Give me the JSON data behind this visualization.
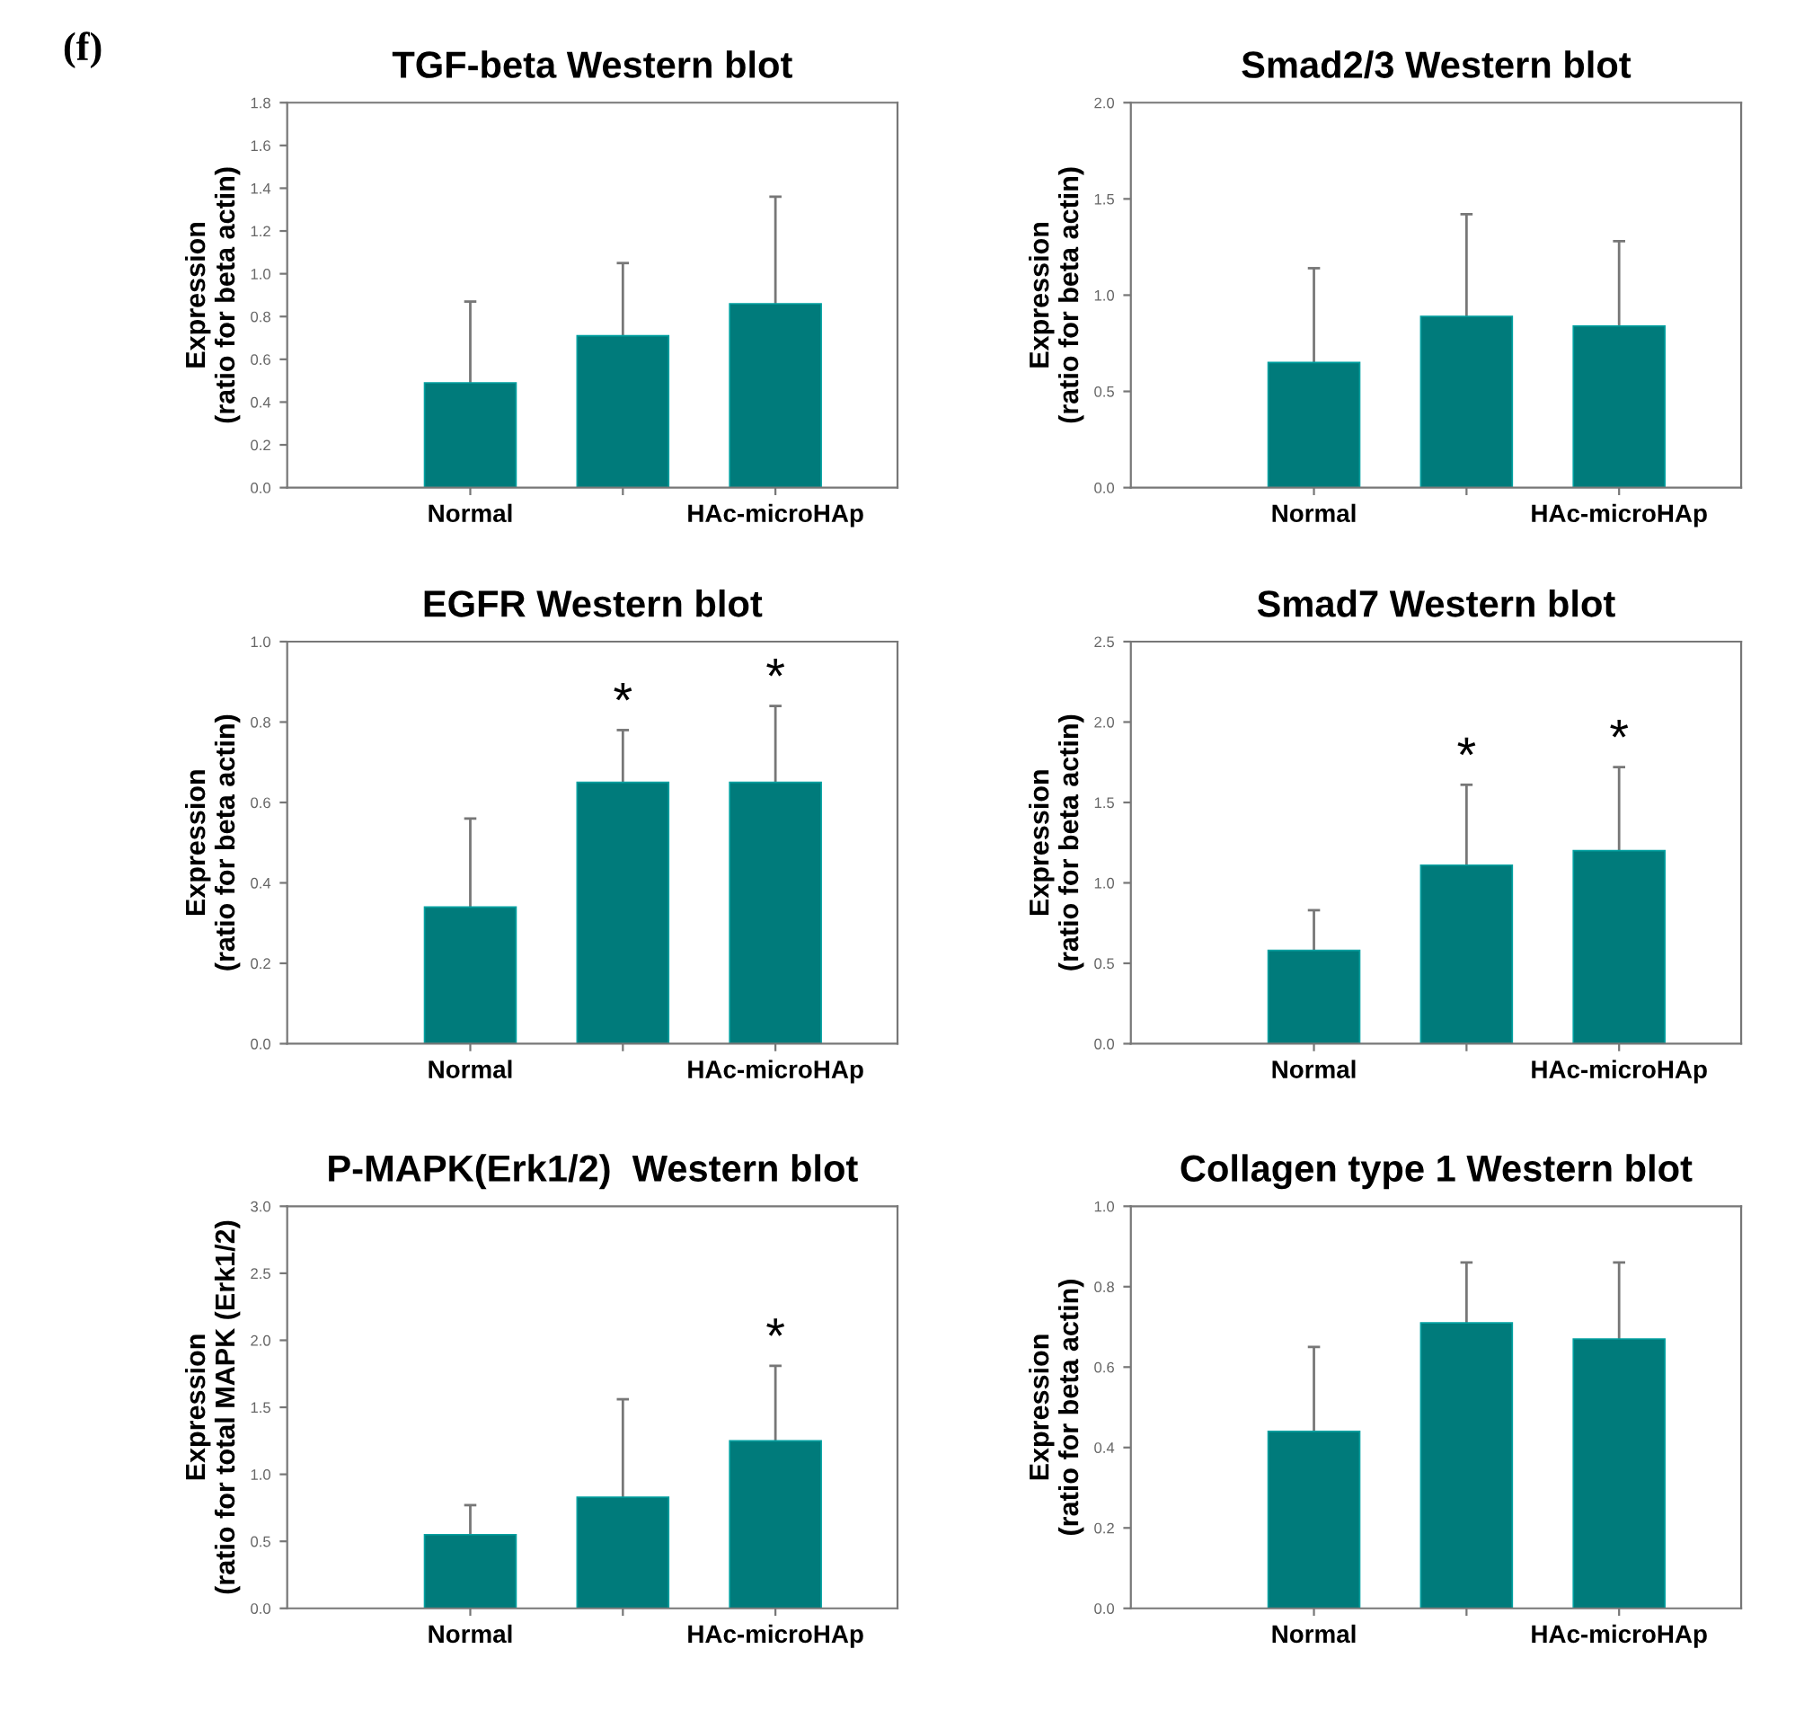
{
  "chart_data": [
    {
      "type": "bar",
      "title": "TGF-beta Western blot",
      "ylabel": "Expression\n(ratio for beta actin)",
      "annotations": [
        "(f)"
      ],
      "categories": [
        "Normal",
        null,
        "HAc-microHAp"
      ],
      "values": [
        0.49,
        0.71,
        0.86
      ],
      "errors": [
        [
          0.49,
          0.87
        ],
        [
          0.71,
          1.05
        ],
        [
          0.86,
          1.36
        ]
      ],
      "color": "#007b7b",
      "ylim": [
        0,
        1.8
      ],
      "yticks": [
        {
          "value": 0,
          "label": "0.0"
        },
        0.2,
        0.4,
        0.6,
        0.8,
        {
          "value": 1,
          "label": "1.0"
        },
        1.2,
        1.4,
        1.6,
        1.8
      ],
      "grid": false,
      "legend": false
    },
    {
      "type": "bar",
      "title": "Smad2/3 Western blot",
      "ylabel": "Expression\n(ratio for beta actin)",
      "categories": [
        "Normal",
        null,
        "HAc-microHAp"
      ],
      "values": [
        0.65,
        0.89,
        0.84
      ],
      "errors": [
        [
          0.65,
          1.14
        ],
        [
          0.89,
          1.42
        ],
        [
          0.84,
          1.28
        ]
      ],
      "color": "#007b7b",
      "ylim": [
        0,
        2
      ],
      "yticks": [
        {
          "value": 0,
          "label": "0.0"
        },
        0.5,
        {
          "value": 1,
          "label": "1.0"
        },
        1.5,
        {
          "value": 2,
          "label": "2.0"
        }
      ],
      "grid": false,
      "legend": false
    },
    {
      "type": "bar",
      "title": "EGFR Western blot",
      "ylabel": "Expression\n(ratio for beta actin)",
      "annotations": [
        {
          "text": "*",
          "y": 0.78
        },
        {
          "text": "*",
          "x": "HAc-microHAp",
          "y": 0.84
        }
      ],
      "categories": [
        "Normal",
        null,
        "HAc-microHAp"
      ],
      "values": [
        0.34,
        0.65,
        0.65
      ],
      "errors": [
        [
          0.34,
          0.56
        ],
        [
          0.65,
          0.78
        ],
        [
          0.65,
          0.84
        ]
      ],
      "color": "#007b7b",
      "ylim": [
        0,
        1
      ],
      "yticks": [
        {
          "value": 0,
          "label": "0.0"
        },
        0.2,
        0.4,
        0.6,
        0.8,
        {
          "value": 1,
          "label": "1.0"
        }
      ],
      "grid": false,
      "legend": false
    },
    {
      "type": "bar",
      "title": "Smad7 Western blot",
      "ylabel": "Expression\n(ratio for beta actin)",
      "annotations": [
        {
          "text": "*",
          "y": 1.61
        },
        {
          "text": "*",
          "x": "HAc-microHAp",
          "y": 1.72
        }
      ],
      "categories": [
        "Normal",
        null,
        "HAc-microHAp"
      ],
      "values": [
        0.58,
        1.11,
        1.2
      ],
      "errors": [
        [
          0.58,
          0.83
        ],
        [
          1.11,
          1.61
        ],
        [
          1.2,
          1.72
        ]
      ],
      "color": "#007b7b",
      "ylim": [
        0,
        2.5
      ],
      "yticks": [
        {
          "value": 0,
          "label": "0.0"
        },
        0.5,
        {
          "value": 1,
          "label": "1.0"
        },
        1.5,
        {
          "value": 2,
          "label": "2.0"
        },
        2.5
      ],
      "grid": false,
      "legend": false
    },
    {
      "type": "bar",
      "title": "P-MAPK(Erk1/2)  Western blot",
      "ylabel": "Expression\n(ratio for total MAPK (Erk1/2)",
      "annotations": [
        {
          "text": "*",
          "x": "HAc-microHAp",
          "y": 1.81
        }
      ],
      "categories": [
        "Normal",
        null,
        "HAc-microHAp"
      ],
      "values": [
        0.55,
        0.83,
        1.25
      ],
      "errors": [
        [
          0.55,
          0.77
        ],
        [
          0.83,
          1.56
        ],
        [
          1.25,
          1.81
        ]
      ],
      "color": "#007b7b",
      "ylim": [
        0,
        3
      ],
      "yticks": [
        {
          "value": 0,
          "label": "0.0"
        },
        0.5,
        {
          "value": 1,
          "label": "1.0"
        },
        1.5,
        {
          "value": 2,
          "label": "2.0"
        },
        2.5,
        {
          "value": 3,
          "label": "3.0"
        }
      ],
      "grid": false,
      "legend": false
    },
    {
      "type": "bar",
      "title": "Collagen type 1 Western blot",
      "ylabel": "Expression\n(ratio for beta actin)",
      "categories": [
        "Normal",
        null,
        "HAc-microHAp"
      ],
      "values": [
        0.44,
        0.71,
        0.67
      ],
      "errors": [
        [
          0.44,
          0.65
        ],
        [
          0.71,
          0.86
        ],
        [
          0.67,
          0.86
        ]
      ],
      "color": "#007b7b",
      "ylim": [
        0,
        1
      ],
      "yticks": [
        {
          "value": 0,
          "label": "0.0"
        },
        0.2,
        0.4,
        0.6,
        0.8,
        {
          "value": 1,
          "label": "1.0"
        }
      ],
      "grid": false,
      "legend": false
    }
  ]
}
